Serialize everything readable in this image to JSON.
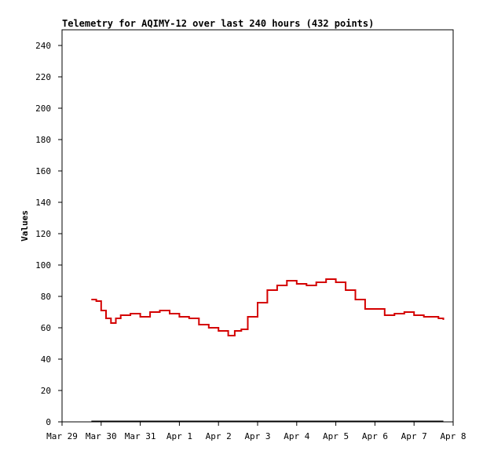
{
  "chart_data": {
    "type": "line",
    "title": "Telemetry for AQIMY-12 over last 240 hours (432 points)",
    "xlabel": "",
    "ylabel": "Values",
    "ylim": [
      0,
      250
    ],
    "yticks": [
      0,
      20,
      40,
      60,
      80,
      100,
      120,
      140,
      160,
      180,
      200,
      220,
      240
    ],
    "x_ticks": [
      "Mar 29",
      "Mar 30",
      "Mar 31",
      "Apr 1",
      "Apr 2",
      "Apr 3",
      "Apr 4",
      "Apr 5",
      "Apr 6",
      "Apr 7",
      "Apr 8"
    ],
    "xlim": [
      "2024-03-29 00:00",
      "2024-04-08 00:00"
    ],
    "grid": false,
    "series": [
      {
        "color": "#d40000",
        "x": [
          "2024-03-29 18:00",
          "2024-03-29 21:00",
          "2024-03-30 00:00",
          "2024-03-30 03:00",
          "2024-03-30 06:00",
          "2024-03-30 09:00",
          "2024-03-30 12:00",
          "2024-03-30 18:00",
          "2024-03-31 00:00",
          "2024-03-31 06:00",
          "2024-03-31 12:00",
          "2024-03-31 18:00",
          "2024-04-01 00:00",
          "2024-04-01 06:00",
          "2024-04-01 12:00",
          "2024-04-01 18:00",
          "2024-04-02 00:00",
          "2024-04-02 06:00",
          "2024-04-02 10:00",
          "2024-04-02 14:00",
          "2024-04-02 18:00",
          "2024-04-03 00:00",
          "2024-04-03 06:00",
          "2024-04-03 12:00",
          "2024-04-03 18:00",
          "2024-04-04 00:00",
          "2024-04-04 06:00",
          "2024-04-04 12:00",
          "2024-04-04 18:00",
          "2024-04-05 00:00",
          "2024-04-05 06:00",
          "2024-04-05 12:00",
          "2024-04-05 18:00",
          "2024-04-06 00:00",
          "2024-04-06 06:00",
          "2024-04-06 12:00",
          "2024-04-06 18:00",
          "2024-04-07 00:00",
          "2024-04-07 06:00",
          "2024-04-07 12:00",
          "2024-04-07 15:00",
          "2024-04-07 18:00"
        ],
        "y": [
          78,
          77,
          71,
          66,
          63,
          66,
          68,
          69,
          67,
          70,
          71,
          69,
          67,
          66,
          62,
          60,
          58,
          55,
          58,
          59,
          67,
          76,
          84,
          87,
          90,
          88,
          87,
          89,
          91,
          89,
          84,
          78,
          72,
          72,
          68,
          69,
          70,
          68,
          67,
          67,
          66,
          65
        ]
      }
    ],
    "zero_line_color": "#000000"
  }
}
